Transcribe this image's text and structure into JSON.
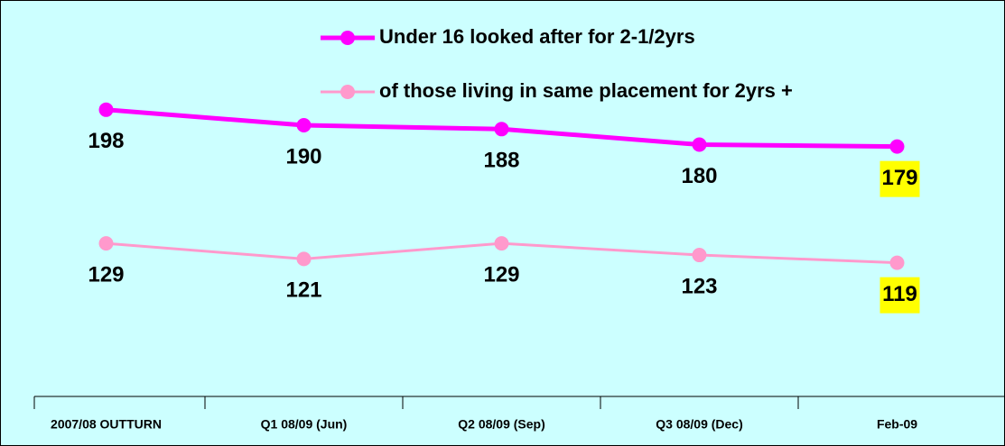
{
  "chart_data": {
    "type": "line",
    "categories": [
      "2007/08 OUTTURN",
      "Q1 08/09 (Jun)",
      "Q2 08/09 (Sep)",
      "Q3 08/09 (Dec)",
      "Feb-09"
    ],
    "series": [
      {
        "name": "Under 16 looked after for 2-1/2yrs",
        "color": "#ff00ff",
        "values": [
          198,
          190,
          188,
          180,
          179
        ]
      },
      {
        "name": "of those living in same placement for 2yrs +",
        "color": "#ff99cc",
        "values": [
          129,
          121,
          129,
          123,
          119
        ]
      }
    ],
    "ylim": [
      50,
      250
    ],
    "highlight_color": "#ffff00"
  }
}
